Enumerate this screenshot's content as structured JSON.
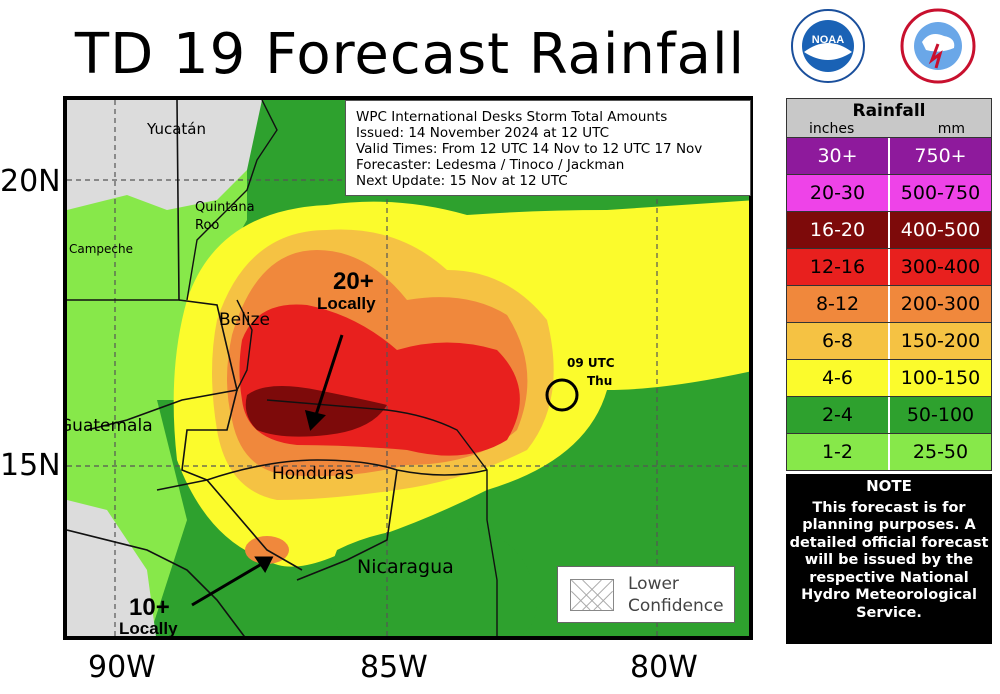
{
  "title": "TD 19 Forecast Rainfall",
  "logos": {
    "noaa": "NOAA",
    "nws": "NATIONAL WEATHER SERVICE"
  },
  "info": {
    "line1": "WPC International Desks Storm Total Amounts",
    "line2": "Issued:  14 November 2024 at 12 UTC",
    "line3": "Valid Times:  From 12 UTC 14 Nov  to  12 UTC 17 Nov",
    "line4": "Forecaster:  Ledesma / Tinoco / Jackman",
    "line5": "Next Update: 15 Nov at 12 UTC"
  },
  "axes": {
    "lat": [
      "20N",
      "15N"
    ],
    "lon": [
      "90W",
      "85W",
      "80W"
    ]
  },
  "places": {
    "yucatan": "Yucatán",
    "quintana": "Quintana",
    "roo": "Roo",
    "campeche": "Campeche",
    "belize": "Belize",
    "guatemala": "Guatemala",
    "honduras": "Honduras",
    "nicaragua": "Nicaragua"
  },
  "annotations": {
    "max1_value": "20+",
    "max1_label": "Locally",
    "max2_value": "10+",
    "max2_label": "Locally",
    "track_time": "09 UTC",
    "track_day": "Thu"
  },
  "confidence": {
    "line1": "Lower",
    "line2": "Confidence"
  },
  "legend": {
    "title": "Rainfall",
    "unit_in": "inches",
    "unit_mm": "mm",
    "rows": [
      {
        "inches": "30+",
        "mm": "750+",
        "color": "#8e1a9c"
      },
      {
        "inches": "20-30",
        "mm": "500-750",
        "color": "#ee43e8"
      },
      {
        "inches": "16-20",
        "mm": "400-500",
        "color": "#7d0a0a"
      },
      {
        "inches": "12-16",
        "mm": "300-400",
        "color": "#e8201e"
      },
      {
        "inches": "8-12",
        "mm": "200-300",
        "color": "#f0883c"
      },
      {
        "inches": "6-8",
        "mm": "150-200",
        "color": "#f5c243"
      },
      {
        "inches": "4-6",
        "mm": "100-150",
        "color": "#fbfb2c"
      },
      {
        "inches": "2-4",
        "mm": "50-100",
        "color": "#2ea12e"
      },
      {
        "inches": "1-2",
        "mm": "25-50",
        "color": "#87e84a"
      }
    ]
  },
  "note": {
    "title": "NOTE",
    "text": "This forecast is for planning purposes. A detailed official forecast will be issued by the respective National Hydro Meteorological Service."
  }
}
